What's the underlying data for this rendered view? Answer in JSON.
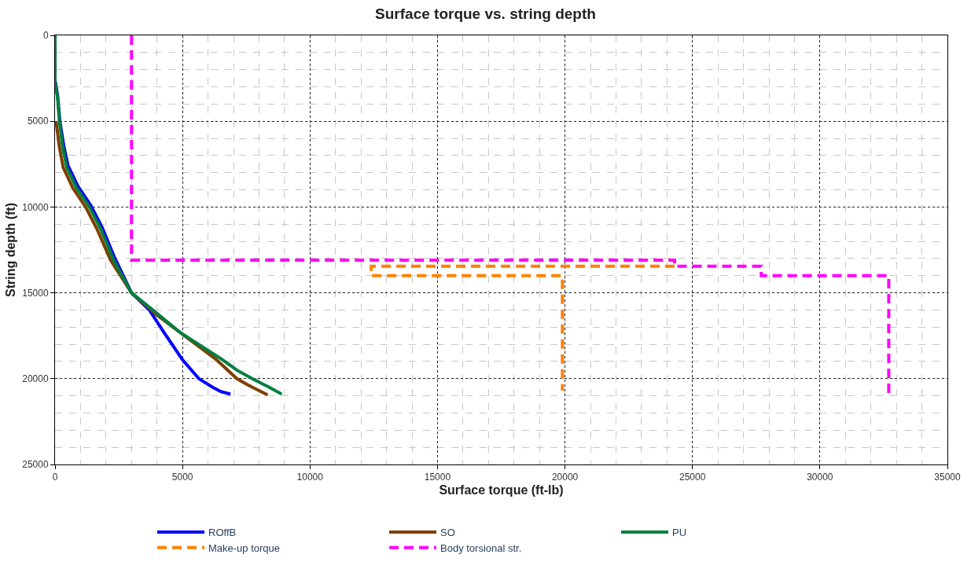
{
  "chart_data": {
    "type": "line",
    "title": "Surface torque vs. string depth",
    "xlabel": "Surface torque (ft-lb)",
    "ylabel": "String depth (ft)",
    "xlim": [
      0,
      35000
    ],
    "xticks": [
      0,
      5000,
      10000,
      15000,
      20000,
      25000,
      30000,
      35000
    ],
    "ylim": [
      25000,
      0
    ],
    "yticks": [
      0,
      5000,
      10000,
      15000,
      20000,
      25000
    ],
    "grid": true,
    "legend": "bottom",
    "marker": "none",
    "series": [
      {
        "name": "ROffB",
        "color": "#0000ff",
        "line_style": "solid",
        "x": [
          0,
          0,
          100,
          190,
          350,
          510,
          900,
          1400,
          1850,
          2350,
          3000,
          3700,
          4270,
          5000,
          5640,
          6180,
          6500,
          6880
        ],
        "values": [
          0,
          2600,
          3500,
          5000,
          6500,
          7600,
          8800,
          9900,
          11200,
          13000,
          15000,
          16000,
          17300,
          18900,
          20000,
          20500,
          20750,
          20900
        ]
      },
      {
        "name": "SO",
        "color": "#7f3f00",
        "line_style": "solid",
        "x": [
          40,
          170,
          320,
          700,
          1200,
          1650,
          2180,
          3000,
          4000,
          4900,
          6300,
          7130,
          7560,
          8000,
          8340
        ],
        "values": [
          5000,
          6500,
          7700,
          8900,
          10000,
          11300,
          13100,
          15000,
          16300,
          17300,
          18860,
          20000,
          20360,
          20700,
          20950
        ]
      },
      {
        "name": "PU",
        "color": "#007f3f",
        "line_style": "solid",
        "x": [
          0,
          0,
          100,
          170,
          300,
          460,
          850,
          1350,
          1800,
          2300,
          3000,
          4000,
          4900,
          6530,
          7130,
          7730,
          8400,
          8890
        ],
        "values": [
          0,
          2800,
          3600,
          5000,
          6500,
          7700,
          8900,
          10000,
          11300,
          13100,
          15000,
          16200,
          17300,
          18860,
          19500,
          20000,
          20500,
          20900
        ]
      },
      {
        "name": "Make-up torque",
        "color": "#ff8000",
        "line_style": "dashed",
        "x": [
          24300,
          12400,
          12400,
          19900,
          19900
        ],
        "values": [
          13450,
          13450,
          14000,
          14000,
          20700
        ]
      },
      {
        "name": "Body torsional str.",
        "color": "#ff00ff",
        "line_style": "dashed",
        "x": [
          3000,
          3000,
          24300,
          24300,
          27700,
          27700,
          32700,
          32700
        ],
        "values": [
          0,
          13100,
          13100,
          13450,
          13450,
          14000,
          14000,
          21000
        ]
      }
    ]
  }
}
